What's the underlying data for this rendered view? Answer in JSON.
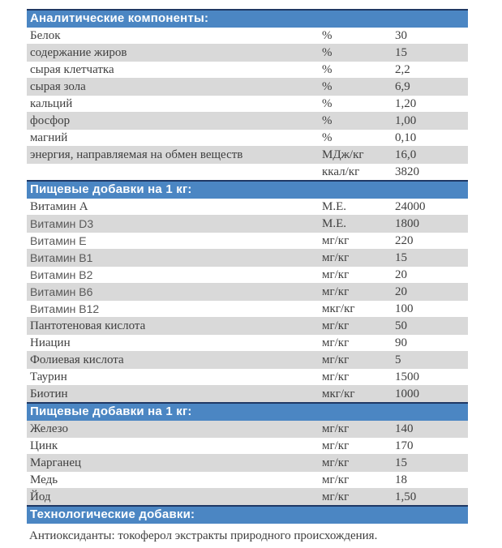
{
  "colors": {
    "header_bg": "#4b86c3",
    "header_top_border": "#1f3864",
    "header_text": "#ffffff",
    "alt_row_bg": "#d9d9d9",
    "body_text": "#3f3f3f",
    "sans_row_text": "#595959"
  },
  "sections": [
    {
      "title": "Аналитические компоненты:",
      "rows": [
        {
          "name": "Белок",
          "unit": "%",
          "value": "30"
        },
        {
          "name": "содержание жиров",
          "unit": "%",
          "value": "15"
        },
        {
          "name": "сырая клетчатка",
          "unit": "%",
          "value": "2,2"
        },
        {
          "name": "сырая зола",
          "unit": "%",
          "value": "6,9"
        },
        {
          "name": "кальций",
          "unit": "%",
          "value": "1,20"
        },
        {
          "name": "фосфор",
          "unit": "%",
          "value": "1,00"
        },
        {
          "name": "магний",
          "unit": "%",
          "value": "0,10"
        },
        {
          "name": "энергия, направляемая на обмен веществ",
          "unit": "МДж/кг",
          "value": "16,0"
        },
        {
          "name": "",
          "unit": "ккал/кг",
          "value": "3820"
        }
      ]
    },
    {
      "title": "Пищевые добавки на 1 кг:",
      "rows": [
        {
          "name": "Витамин А",
          "unit": "М.Е.",
          "value": "24000"
        },
        {
          "name": "Витамин D3",
          "unit": "М.Е.",
          "value": "1800",
          "sans": true
        },
        {
          "name": "Витамин E",
          "unit": "мг/кг",
          "value": "220",
          "sans": true
        },
        {
          "name": "Витамин B1",
          "unit": "мг/кг",
          "value": "15",
          "sans": true
        },
        {
          "name": "Витамин B2",
          "unit": "мг/кг",
          "value": "20",
          "sans": true
        },
        {
          "name": "Витамин B6",
          "unit": "мг/кг",
          "value": "20",
          "sans": true
        },
        {
          "name": "Витамин B12",
          "unit": "мкг/кг",
          "value": "100",
          "sans": true
        },
        {
          "name": "Пантотеновая кислота",
          "unit": "мг/кг",
          "value": "50"
        },
        {
          "name": "Ниацин",
          "unit": "мг/кг",
          "value": "90"
        },
        {
          "name": "Фолиевая кислота",
          "unit": "мг/кг",
          "value": "5"
        },
        {
          "name": "Таурин",
          "unit": "мг/кг",
          "value": "1500"
        },
        {
          "name": "Биотин",
          "unit": "мкг/кг",
          "value": "1000"
        }
      ]
    },
    {
      "title": "Пищевые добавки на 1 кг:",
      "rows": [
        {
          "name": "Железо",
          "unit": "мг/кг",
          "value": "140"
        },
        {
          "name": "Цинк",
          "unit": "мг/кг",
          "value": "170"
        },
        {
          "name": "Марганец",
          "unit": "мг/кг",
          "value": "15"
        },
        {
          "name": "Медь",
          "unit": "мг/кг",
          "value": "18"
        },
        {
          "name": "Йод",
          "unit": "мг/кг",
          "value": "1,50"
        }
      ]
    },
    {
      "title": "Технологические добавки:",
      "rows": []
    }
  ],
  "footer_note": "Антиоксиданты: токоферол экстракты природного происхождения."
}
